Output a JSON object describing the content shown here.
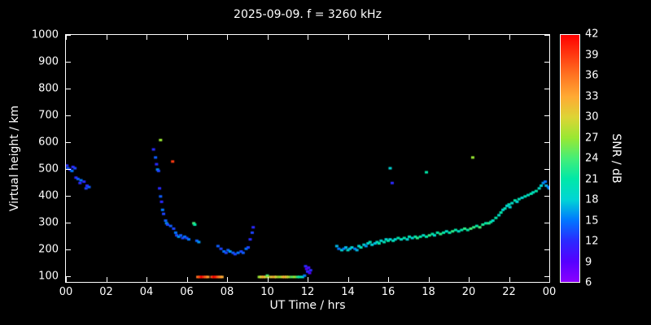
{
  "title": "2025-09-09. f = 3260 kHz",
  "chart_data": {
    "type": "scatter",
    "title": "2025-09-09. f = 3260 kHz",
    "xlabel": "UT Time / hrs",
    "ylabel": "Virtual height / km",
    "xlim": [
      0,
      24
    ],
    "ylim": [
      80,
      1000
    ],
    "background_color": "#000000",
    "axis_color": "#ffffff",
    "x_ticks": {
      "values": [
        0,
        2,
        4,
        6,
        8,
        10,
        12,
        14,
        16,
        18,
        20,
        22,
        24
      ],
      "labels": [
        "00",
        "02",
        "04",
        "06",
        "08",
        "10",
        "12",
        "14",
        "16",
        "18",
        "20",
        "22",
        "00"
      ]
    },
    "y_ticks": {
      "values": [
        100,
        200,
        300,
        400,
        500,
        600,
        700,
        800,
        900,
        1000
      ],
      "labels": [
        "100",
        "200",
        "300",
        "400",
        "500",
        "600",
        "700",
        "800",
        "900",
        "1000"
      ]
    },
    "colorbar": {
      "label": "SNR / dB",
      "min": 6,
      "max": 42,
      "tick_values": [
        42,
        39,
        36,
        33,
        30,
        27,
        24,
        21,
        18,
        15,
        12,
        9,
        6
      ],
      "stops": [
        {
          "v": 6,
          "color": "#8a00ff"
        },
        {
          "v": 9,
          "color": "#5500ff"
        },
        {
          "v": 12,
          "color": "#2a2aff"
        },
        {
          "v": 15,
          "color": "#0077ff"
        },
        {
          "v": 18,
          "color": "#00d5d5"
        },
        {
          "v": 21,
          "color": "#00e8a8"
        },
        {
          "v": 24,
          "color": "#44ee77"
        },
        {
          "v": 27,
          "color": "#99e833"
        },
        {
          "v": 30,
          "color": "#ddd435"
        },
        {
          "v": 33,
          "color": "#ffaa33"
        },
        {
          "v": 36,
          "color": "#ff7722"
        },
        {
          "v": 39,
          "color": "#ff3b11"
        },
        {
          "v": 42,
          "color": "#ff0000"
        }
      ]
    },
    "points_format": [
      "ut_hours",
      "virtual_height_km",
      "snr_db"
    ],
    "points": [
      [
        0.05,
        515,
        12
      ],
      [
        0.1,
        505,
        14
      ],
      [
        0.2,
        500,
        12
      ],
      [
        0.3,
        495,
        15
      ],
      [
        0.35,
        510,
        12
      ],
      [
        0.45,
        505,
        13
      ],
      [
        0.5,
        470,
        12
      ],
      [
        0.6,
        465,
        14
      ],
      [
        0.7,
        450,
        12
      ],
      [
        0.75,
        460,
        15
      ],
      [
        0.9,
        455,
        12
      ],
      [
        1.0,
        430,
        13
      ],
      [
        1.05,
        440,
        12
      ],
      [
        1.15,
        435,
        14
      ],
      [
        4.35,
        575,
        12
      ],
      [
        4.45,
        545,
        14
      ],
      [
        4.5,
        520,
        12
      ],
      [
        4.55,
        500,
        16
      ],
      [
        4.6,
        495,
        13
      ],
      [
        4.65,
        430,
        12
      ],
      [
        4.7,
        610,
        27
      ],
      [
        4.7,
        400,
        14
      ],
      [
        4.75,
        380,
        12
      ],
      [
        4.8,
        350,
        15
      ],
      [
        4.85,
        335,
        13
      ],
      [
        4.95,
        310,
        14
      ],
      [
        5.0,
        300,
        16
      ],
      [
        5.05,
        295,
        13
      ],
      [
        5.3,
        530,
        39
      ],
      [
        5.2,
        290,
        14
      ],
      [
        5.35,
        280,
        13
      ],
      [
        5.45,
        265,
        15
      ],
      [
        5.5,
        255,
        13
      ],
      [
        5.6,
        250,
        16
      ],
      [
        5.7,
        255,
        14
      ],
      [
        5.8,
        245,
        13
      ],
      [
        5.9,
        250,
        15
      ],
      [
        6.0,
        245,
        13
      ],
      [
        6.1,
        240,
        15
      ],
      [
        6.35,
        300,
        24
      ],
      [
        6.4,
        295,
        21
      ],
      [
        6.5,
        235,
        14
      ],
      [
        6.6,
        230,
        16
      ],
      [
        6.55,
        100,
        36
      ],
      [
        6.65,
        100,
        39
      ],
      [
        6.75,
        100,
        42
      ],
      [
        6.85,
        100,
        39
      ],
      [
        6.95,
        100,
        37
      ],
      [
        7.05,
        100,
        34
      ],
      [
        7.25,
        100,
        38
      ],
      [
        7.35,
        100,
        42
      ],
      [
        7.45,
        100,
        40
      ],
      [
        7.55,
        100,
        37
      ],
      [
        7.65,
        100,
        35
      ],
      [
        7.75,
        100,
        33
      ],
      [
        7.55,
        215,
        14
      ],
      [
        7.7,
        205,
        13
      ],
      [
        7.85,
        195,
        15
      ],
      [
        7.95,
        190,
        13
      ],
      [
        8.05,
        200,
        14
      ],
      [
        8.15,
        195,
        16
      ],
      [
        8.3,
        190,
        14
      ],
      [
        8.4,
        185,
        13
      ],
      [
        8.55,
        190,
        15
      ],
      [
        8.7,
        195,
        13
      ],
      [
        8.8,
        190,
        14
      ],
      [
        8.95,
        205,
        15
      ],
      [
        9.05,
        210,
        13
      ],
      [
        9.15,
        240,
        12
      ],
      [
        9.25,
        265,
        13
      ],
      [
        9.3,
        285,
        12
      ],
      [
        9.6,
        100,
        27
      ],
      [
        9.7,
        100,
        30
      ],
      [
        9.8,
        100,
        33
      ],
      [
        9.9,
        100,
        30
      ],
      [
        10.0,
        105,
        24
      ],
      [
        10.05,
        100,
        28
      ],
      [
        10.2,
        100,
        31
      ],
      [
        10.35,
        100,
        33
      ],
      [
        10.45,
        100,
        29
      ],
      [
        10.6,
        100,
        27
      ],
      [
        10.75,
        100,
        30
      ],
      [
        10.85,
        100,
        33
      ],
      [
        10.95,
        100,
        31
      ],
      [
        11.05,
        100,
        28
      ],
      [
        11.2,
        100,
        25
      ],
      [
        11.35,
        100,
        27
      ],
      [
        11.5,
        100,
        23
      ],
      [
        11.6,
        100,
        21
      ],
      [
        11.75,
        100,
        19
      ],
      [
        11.85,
        105,
        15
      ],
      [
        11.9,
        140,
        12
      ],
      [
        11.95,
        130,
        9
      ],
      [
        12.0,
        120,
        12
      ],
      [
        12.05,
        135,
        10
      ],
      [
        12.1,
        115,
        9
      ],
      [
        12.15,
        125,
        12
      ],
      [
        13.45,
        215,
        17
      ],
      [
        13.55,
        205,
        15
      ],
      [
        13.7,
        200,
        18
      ],
      [
        13.8,
        205,
        15
      ],
      [
        13.9,
        210,
        17
      ],
      [
        14.0,
        200,
        19
      ],
      [
        14.1,
        205,
        17
      ],
      [
        14.2,
        210,
        18
      ],
      [
        14.35,
        205,
        15
      ],
      [
        14.45,
        200,
        17
      ],
      [
        14.55,
        215,
        18
      ],
      [
        14.65,
        210,
        20
      ],
      [
        14.8,
        220,
        18
      ],
      [
        14.9,
        215,
        16
      ],
      [
        15.0,
        225,
        18
      ],
      [
        15.1,
        230,
        20
      ],
      [
        15.2,
        220,
        18
      ],
      [
        15.35,
        225,
        17
      ],
      [
        15.45,
        230,
        19
      ],
      [
        15.55,
        225,
        21
      ],
      [
        15.65,
        235,
        18
      ],
      [
        15.8,
        230,
        20
      ],
      [
        15.9,
        240,
        18
      ],
      [
        16.0,
        235,
        21
      ],
      [
        16.1,
        240,
        18
      ],
      [
        16.25,
        235,
        20
      ],
      [
        16.35,
        240,
        18
      ],
      [
        16.5,
        245,
        21
      ],
      [
        16.65,
        240,
        19
      ],
      [
        16.8,
        245,
        21
      ],
      [
        16.95,
        240,
        18
      ],
      [
        17.05,
        250,
        20
      ],
      [
        17.2,
        245,
        18
      ],
      [
        17.35,
        250,
        21
      ],
      [
        17.45,
        245,
        23
      ],
      [
        17.6,
        250,
        21
      ],
      [
        17.75,
        255,
        19
      ],
      [
        17.9,
        250,
        21
      ],
      [
        18.05,
        255,
        23
      ],
      [
        18.2,
        260,
        21
      ],
      [
        18.3,
        255,
        19
      ],
      [
        18.45,
        265,
        21
      ],
      [
        18.6,
        260,
        23
      ],
      [
        18.75,
        265,
        21
      ],
      [
        18.9,
        270,
        19
      ],
      [
        19.05,
        265,
        21
      ],
      [
        19.2,
        270,
        23
      ],
      [
        19.35,
        275,
        21
      ],
      [
        19.5,
        270,
        19
      ],
      [
        19.65,
        275,
        21
      ],
      [
        19.8,
        280,
        23
      ],
      [
        19.95,
        275,
        21
      ],
      [
        20.1,
        280,
        24
      ],
      [
        20.25,
        285,
        23
      ],
      [
        20.4,
        290,
        21
      ],
      [
        20.55,
        285,
        24
      ],
      [
        20.7,
        295,
        22
      ],
      [
        20.85,
        300,
        21
      ],
      [
        21.0,
        300,
        23
      ],
      [
        16.1,
        505,
        18
      ],
      [
        16.2,
        450,
        12
      ],
      [
        17.9,
        490,
        21
      ],
      [
        20.2,
        545,
        27
      ],
      [
        21.1,
        305,
        21
      ],
      [
        21.2,
        310,
        19
      ],
      [
        21.35,
        320,
        21
      ],
      [
        21.5,
        330,
        19
      ],
      [
        21.6,
        340,
        21
      ],
      [
        21.7,
        350,
        18
      ],
      [
        21.8,
        355,
        20
      ],
      [
        21.9,
        365,
        18
      ],
      [
        22.0,
        370,
        20
      ],
      [
        22.05,
        360,
        18
      ],
      [
        22.15,
        375,
        19
      ],
      [
        22.3,
        385,
        21
      ],
      [
        22.4,
        380,
        18
      ],
      [
        22.5,
        390,
        20
      ],
      [
        22.65,
        395,
        18
      ],
      [
        22.8,
        400,
        20
      ],
      [
        22.95,
        405,
        19
      ],
      [
        23.1,
        410,
        21
      ],
      [
        23.2,
        415,
        19
      ],
      [
        23.35,
        420,
        21
      ],
      [
        23.5,
        430,
        19
      ],
      [
        23.6,
        440,
        18
      ],
      [
        23.7,
        450,
        16
      ],
      [
        23.8,
        455,
        15
      ],
      [
        23.85,
        440,
        17
      ],
      [
        23.95,
        435,
        15
      ],
      [
        24.0,
        430,
        16
      ]
    ]
  }
}
